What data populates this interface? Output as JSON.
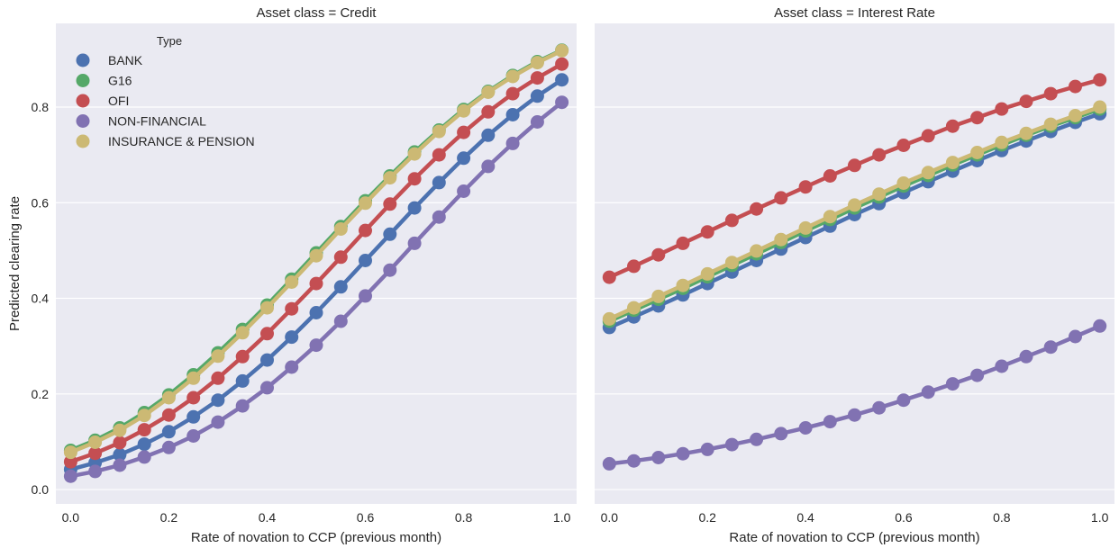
{
  "chart_data": {
    "type": "line",
    "style": "seaborn-darkgrid",
    "ylabel": "Predicted clearing rate",
    "shared_y": true,
    "ylim": [
      -0.03,
      0.975
    ],
    "xlim": [
      -0.03,
      1.03
    ],
    "yticks": [
      0.0,
      0.2,
      0.4,
      0.6,
      0.8
    ],
    "ytick_labels": [
      "0.0",
      "0.2",
      "0.4",
      "0.6",
      "0.8"
    ],
    "xticks": [
      0.0,
      0.2,
      0.4,
      0.6,
      0.8,
      1.0
    ],
    "xtick_labels": [
      "0.0",
      "0.2",
      "0.4",
      "0.6",
      "0.8",
      "1.0"
    ],
    "grid": true,
    "legend": {
      "title": "Type",
      "placement": "upper-left",
      "entries": [
        "BANK",
        "G16",
        "OFI",
        "NON-FINANCIAL",
        "INSURANCE & PENSION"
      ]
    },
    "colors": {
      "BANK": "#4c72b0",
      "G16": "#55a868",
      "OFI": "#c44e52",
      "NON-FINANCIAL": "#8172b2",
      "INSURANCE & PENSION": "#ccb974"
    },
    "x": [
      0.0,
      0.05,
      0.1,
      0.15,
      0.2,
      0.25,
      0.3,
      0.35,
      0.4,
      0.45,
      0.5,
      0.55,
      0.6,
      0.65,
      0.7,
      0.75,
      0.8,
      0.85,
      0.9,
      0.95,
      1.0
    ],
    "panels": [
      {
        "title": "Asset class = Credit",
        "xlabel": "Rate of novation to CCP (previous month)",
        "series": [
          {
            "name": "BANK",
            "values": [
              0.042,
              0.056,
              0.073,
              0.095,
              0.121,
              0.152,
              0.187,
              0.227,
              0.271,
              0.319,
              0.37,
              0.424,
              0.479,
              0.534,
              0.589,
              0.642,
              0.693,
              0.741,
              0.784,
              0.823,
              0.857
            ]
          },
          {
            "name": "G16",
            "values": [
              0.082,
              0.103,
              0.129,
              0.161,
              0.198,
              0.24,
              0.286,
              0.335,
              0.386,
              0.44,
              0.495,
              0.55,
              0.604,
              0.656,
              0.706,
              0.752,
              0.795,
              0.833,
              0.866,
              0.895,
              0.919
            ]
          },
          {
            "name": "OFI",
            "values": [
              0.058,
              0.076,
              0.098,
              0.125,
              0.156,
              0.192,
              0.233,
              0.278,
              0.326,
              0.378,
              0.431,
              0.486,
              0.542,
              0.597,
              0.65,
              0.7,
              0.747,
              0.79,
              0.828,
              0.861,
              0.89
            ]
          },
          {
            "name": "NON-FINANCIAL",
            "values": [
              0.028,
              0.038,
              0.051,
              0.068,
              0.088,
              0.112,
              0.141,
              0.175,
              0.213,
              0.256,
              0.302,
              0.352,
              0.405,
              0.459,
              0.515,
              0.57,
              0.624,
              0.676,
              0.724,
              0.769,
              0.81
            ]
          },
          {
            "name": "INSURANCE & PENSION",
            "values": [
              0.078,
              0.099,
              0.124,
              0.155,
              0.192,
              0.233,
              0.279,
              0.328,
              0.38,
              0.434,
              0.489,
              0.545,
              0.599,
              0.652,
              0.702,
              0.749,
              0.792,
              0.831,
              0.864,
              0.893,
              0.918
            ]
          }
        ]
      },
      {
        "title": "Asset class = Interest Rate",
        "xlabel": "Rate of novation to CCP (previous month)",
        "series": [
          {
            "name": "BANK",
            "values": [
              0.339,
              0.361,
              0.384,
              0.407,
              0.431,
              0.455,
              0.479,
              0.503,
              0.527,
              0.551,
              0.575,
              0.598,
              0.621,
              0.644,
              0.666,
              0.688,
              0.709,
              0.729,
              0.749,
              0.768,
              0.786
            ]
          },
          {
            "name": "G16",
            "values": [
              0.352,
              0.375,
              0.398,
              0.421,
              0.445,
              0.469,
              0.493,
              0.517,
              0.541,
              0.565,
              0.589,
              0.612,
              0.635,
              0.657,
              0.679,
              0.7,
              0.721,
              0.741,
              0.76,
              0.778,
              0.796
            ]
          },
          {
            "name": "OFI",
            "values": [
              0.444,
              0.467,
              0.491,
              0.515,
              0.539,
              0.563,
              0.587,
              0.61,
              0.633,
              0.656,
              0.678,
              0.7,
              0.72,
              0.74,
              0.76,
              0.778,
              0.796,
              0.812,
              0.828,
              0.843,
              0.857
            ]
          },
          {
            "name": "NON-FINANCIAL",
            "values": [
              0.054,
              0.06,
              0.067,
              0.075,
              0.084,
              0.094,
              0.105,
              0.117,
              0.129,
              0.142,
              0.156,
              0.171,
              0.187,
              0.204,
              0.221,
              0.239,
              0.258,
              0.278,
              0.298,
              0.32,
              0.342
            ]
          },
          {
            "name": "INSURANCE & PENSION",
            "values": [
              0.357,
              0.38,
              0.404,
              0.427,
              0.451,
              0.475,
              0.499,
              0.523,
              0.547,
              0.571,
              0.595,
              0.618,
              0.641,
              0.663,
              0.684,
              0.705,
              0.726,
              0.745,
              0.764,
              0.782,
              0.8
            ]
          }
        ]
      }
    ]
  }
}
